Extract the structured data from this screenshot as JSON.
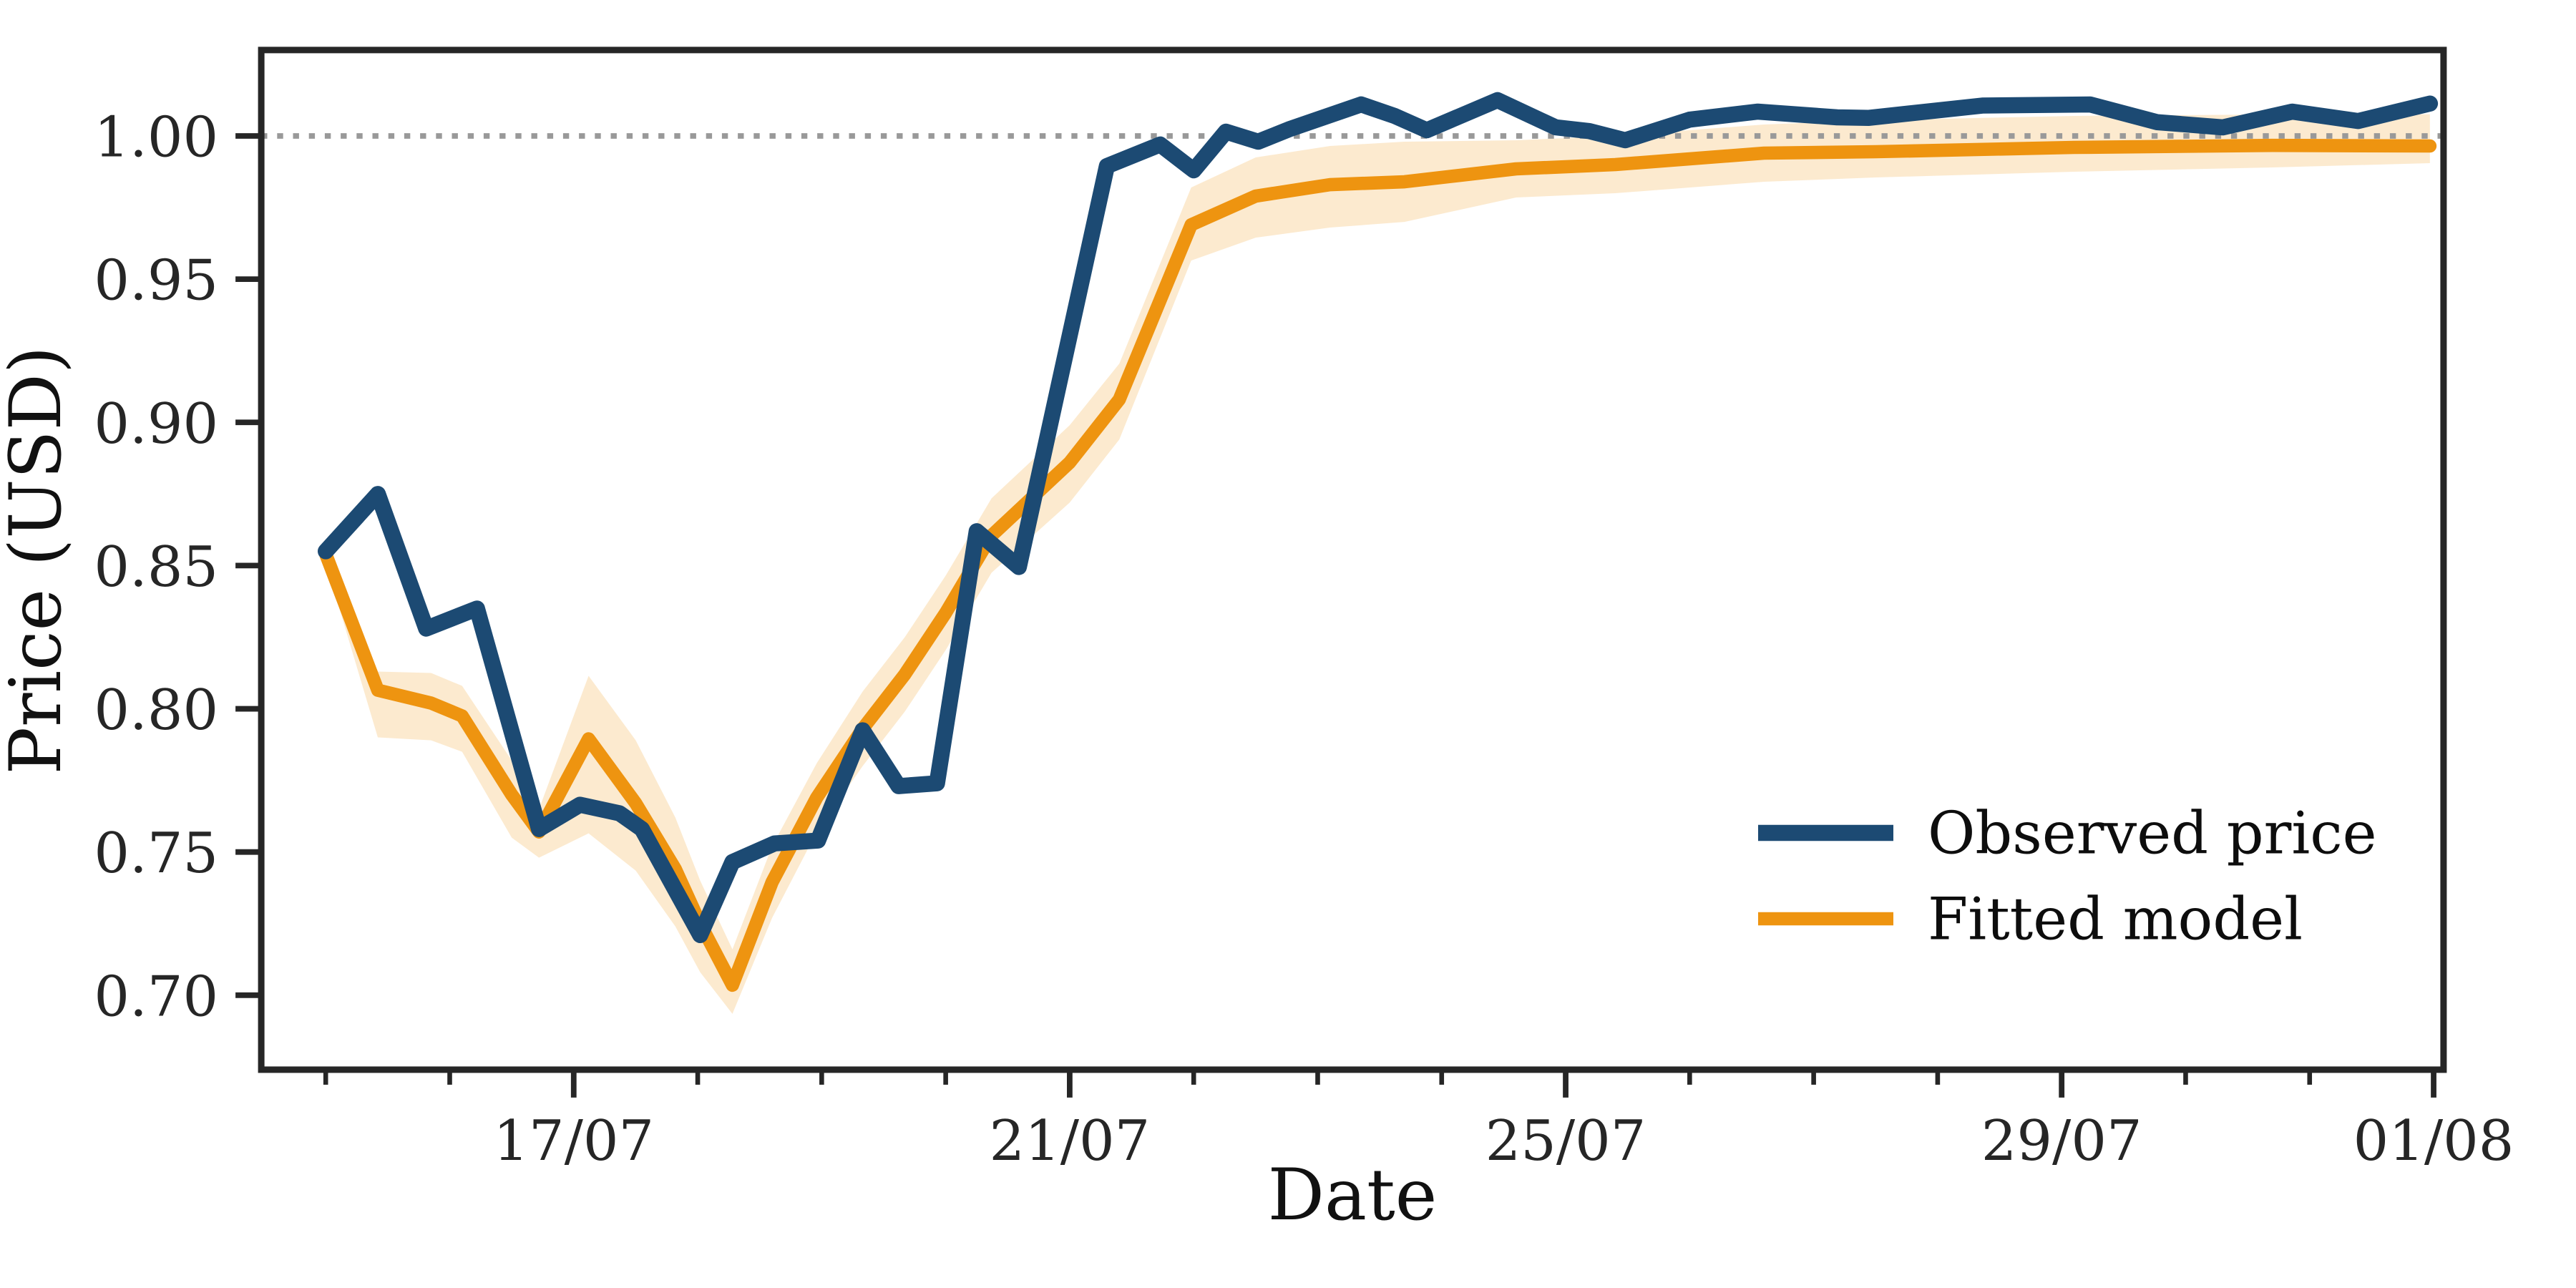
{
  "page": {
    "background": "#ffffff"
  },
  "chart_data": {
    "type": "line",
    "title": "",
    "xlabel": "Date",
    "ylabel": "Price (USD)",
    "x_unit": "days from first plotted point (15/07)",
    "xlim": [
      -0.52,
      17.08
    ],
    "ylim": [
      0.674,
      1.03
    ],
    "grid": false,
    "axis_color": "#262626",
    "ref_line": {
      "y": 1.0,
      "style": "dotted",
      "color": "#999999"
    },
    "x_ticks": [
      {
        "pos": 2,
        "label": "17/07"
      },
      {
        "pos": 6,
        "label": "21/07"
      },
      {
        "pos": 10,
        "label": "25/07"
      },
      {
        "pos": 14,
        "label": "29/07"
      },
      {
        "pos": 17,
        "label": "01/08"
      }
    ],
    "x_minor_ticks": [
      0,
      1,
      3,
      4,
      5,
      7,
      8,
      9,
      11,
      12,
      13,
      15,
      16
    ],
    "y_ticks": [
      {
        "value": 1.0,
        "label": "1.00"
      },
      {
        "value": 0.95,
        "label": "0.95"
      },
      {
        "value": 0.9,
        "label": "0.90"
      },
      {
        "value": 0.85,
        "label": "0.85"
      },
      {
        "value": 0.8,
        "label": "0.80"
      },
      {
        "value": 0.75,
        "label": "0.75"
      },
      {
        "value": 0.7,
        "label": "0.70"
      }
    ],
    "series": [
      {
        "name": "Observed price",
        "color": "#1c4a73",
        "line_width": 7.5,
        "x": [
          0.0,
          0.42,
          0.81,
          1.22,
          1.72,
          2.05,
          2.37,
          2.55,
          3.02,
          3.28,
          3.62,
          3.97,
          4.33,
          4.62,
          4.93,
          5.25,
          5.59,
          6.3,
          6.73,
          7.0,
          7.26,
          7.52,
          7.78,
          8.35,
          8.62,
          8.88,
          9.45,
          9.92,
          10.19,
          10.48,
          11.0,
          11.55,
          12.19,
          12.44,
          13.36,
          14.23,
          14.77,
          15.3,
          15.86,
          16.39,
          16.97
        ],
        "y": [
          0.855,
          0.875,
          0.828,
          0.835,
          0.758,
          0.7665,
          0.7635,
          0.758,
          0.721,
          0.7465,
          0.753,
          0.754,
          0.7925,
          0.773,
          0.774,
          0.862,
          0.8495,
          0.9895,
          0.997,
          0.988,
          1.0015,
          0.998,
          1.0025,
          1.011,
          1.007,
          1.002,
          1.0125,
          1.003,
          1.0017,
          0.9985,
          1.0057,
          1.0085,
          1.0065,
          1.0063,
          1.0106,
          1.011,
          1.0048,
          1.003,
          1.0085,
          1.0052,
          1.0113
        ]
      },
      {
        "name": "Fitted model",
        "color": "#ee9410",
        "line_width": 6.2,
        "x": [
          0.0,
          0.42,
          0.85,
          1.1,
          1.5,
          1.72,
          2.12,
          2.5,
          2.82,
          3.02,
          3.28,
          3.6,
          3.96,
          4.33,
          4.67,
          5.0,
          5.37,
          6.0,
          6.4,
          6.98,
          7.5,
          8.1,
          8.7,
          9.6,
          10.4,
          11.6,
          12.5,
          14.1,
          15.7,
          16.97
        ],
        "y": [
          0.854,
          0.8065,
          0.802,
          0.7975,
          0.77,
          0.757,
          0.7895,
          0.767,
          0.744,
          0.725,
          0.7035,
          0.7395,
          0.769,
          0.793,
          0.812,
          0.8335,
          0.8605,
          0.886,
          0.908,
          0.969,
          0.979,
          0.983,
          0.984,
          0.9885,
          0.99,
          0.994,
          0.9945,
          0.996,
          0.9967,
          0.9965
        ],
        "band": {
          "label": "confidence band",
          "fill": "#ee9410",
          "opacity": 0.2,
          "upper": [
            0.857,
            0.813,
            0.8125,
            0.808,
            0.782,
            0.765,
            0.8115,
            0.789,
            0.762,
            0.74,
            0.716,
            0.752,
            0.781,
            0.806,
            0.825,
            0.8465,
            0.8735,
            0.899,
            0.9205,
            0.982,
            0.9925,
            0.9965,
            0.998,
            0.9985,
            1.0,
            1.004,
            1.0055,
            1.007,
            1.0075,
            1.0076
          ],
          "lower": [
            0.851,
            0.79,
            0.789,
            0.785,
            0.755,
            0.748,
            0.7565,
            0.7435,
            0.724,
            0.708,
            0.6935,
            0.727,
            0.757,
            0.78,
            0.799,
            0.8205,
            0.8475,
            0.872,
            0.894,
            0.9565,
            0.9645,
            0.968,
            0.97,
            0.9785,
            0.98,
            0.984,
            0.9855,
            0.9875,
            0.989,
            0.9905
          ]
        }
      }
    ],
    "legend": {
      "position": "lower right",
      "frame": false,
      "entries": [
        "Observed price",
        "Fitted model"
      ]
    }
  }
}
